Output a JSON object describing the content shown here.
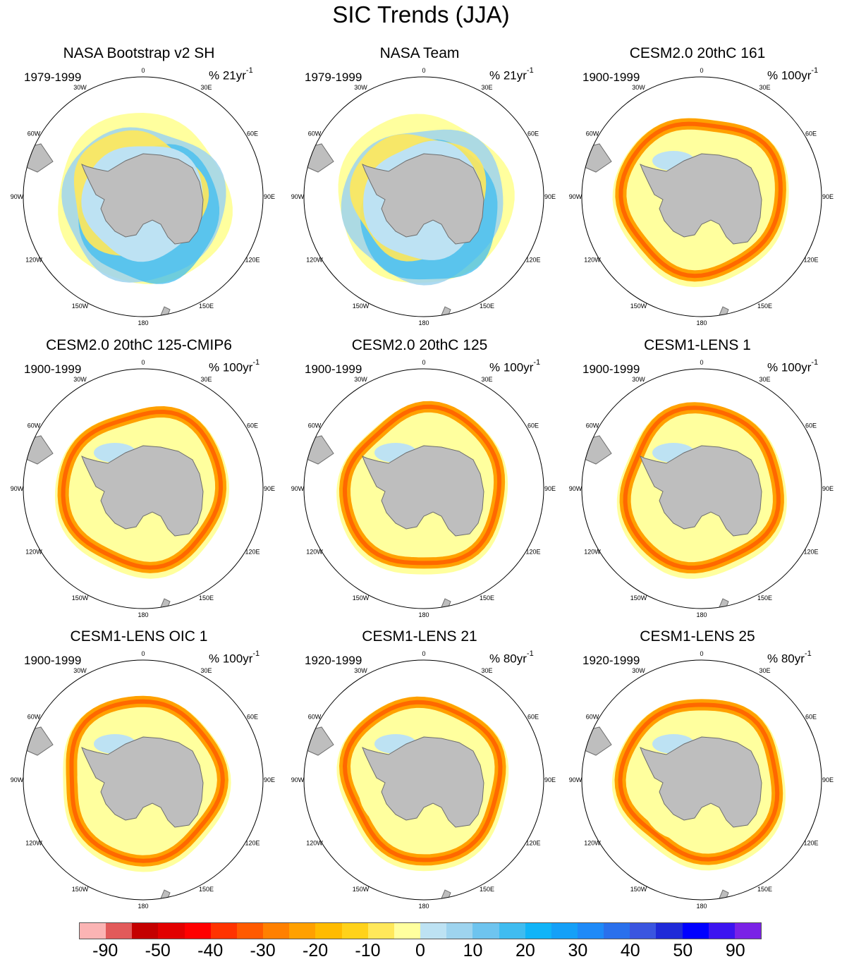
{
  "title": "SIC Trends (JJA)",
  "longitude_labels": [
    "0",
    "30E",
    "60E",
    "90E",
    "120E",
    "150E",
    "180",
    "150W",
    "120W",
    "90W",
    "60W",
    "30W"
  ],
  "panels": [
    {
      "title": "NASA Bootstrap v2 SH",
      "period": "1979-1999",
      "units": "% 21yr",
      "units_exp": "-1",
      "pattern": "obs"
    },
    {
      "title": "NASA Team",
      "period": "1979-1999",
      "units": "% 21yr",
      "units_exp": "-1",
      "pattern": "obs"
    },
    {
      "title": "CESM2.0 20thC 161",
      "period": "1900-1999",
      "units": "% 100yr",
      "units_exp": "-1",
      "pattern": "model"
    },
    {
      "title": "CESM2.0 20thC 125-CMIP6",
      "period": "1900-1999",
      "units": "% 100yr",
      "units_exp": "-1",
      "pattern": "model"
    },
    {
      "title": "CESM2.0 20thC 125",
      "period": "1900-1999",
      "units": "% 100yr",
      "units_exp": "-1",
      "pattern": "model"
    },
    {
      "title": "CESM1-LENS 1",
      "period": "1900-1999",
      "units": "% 100yr",
      "units_exp": "-1",
      "pattern": "model"
    },
    {
      "title": "CESM1-LENS OIC 1",
      "period": "1900-1999",
      "units": "% 100yr",
      "units_exp": "-1",
      "pattern": "model"
    },
    {
      "title": "CESM1-LENS 21",
      "period": "1920-1999",
      "units": "% 80yr",
      "units_exp": "-1",
      "pattern": "model"
    },
    {
      "title": "CESM1-LENS 25",
      "period": "1920-1999",
      "units": "% 80yr",
      "units_exp": "-1",
      "pattern": "model"
    }
  ],
  "colorbar": {
    "colors": [
      "#fbb4b4",
      "#e25a5a",
      "#c40000",
      "#e20000",
      "#ff0000",
      "#ff3300",
      "#ff5a00",
      "#ff8000",
      "#ffa000",
      "#ffbb00",
      "#ffd21a",
      "#ffe85a",
      "#ffff9e",
      "#bde2f3",
      "#9ed4ef",
      "#6ec4ef",
      "#3fbcf0",
      "#10b4f8",
      "#14a0f8",
      "#1e8af8",
      "#2a70ec",
      "#3a55e0",
      "#1f2ad8",
      "#0000ff",
      "#3c14f0",
      "#7a22e6"
    ],
    "labels": [
      {
        "text": "-90",
        "index": 1
      },
      {
        "text": "-50",
        "index": 3
      },
      {
        "text": "-40",
        "index": 5
      },
      {
        "text": "-30",
        "index": 7
      },
      {
        "text": "-20",
        "index": 9
      },
      {
        "text": "-10",
        "index": 11
      },
      {
        "text": "0",
        "index": 13
      },
      {
        "text": "10",
        "index": 15
      },
      {
        "text": "20",
        "index": 17
      },
      {
        "text": "30",
        "index": 19
      },
      {
        "text": "40",
        "index": 21
      },
      {
        "text": "50",
        "index": 23
      },
      {
        "text": "90",
        "index": 25
      }
    ]
  }
}
